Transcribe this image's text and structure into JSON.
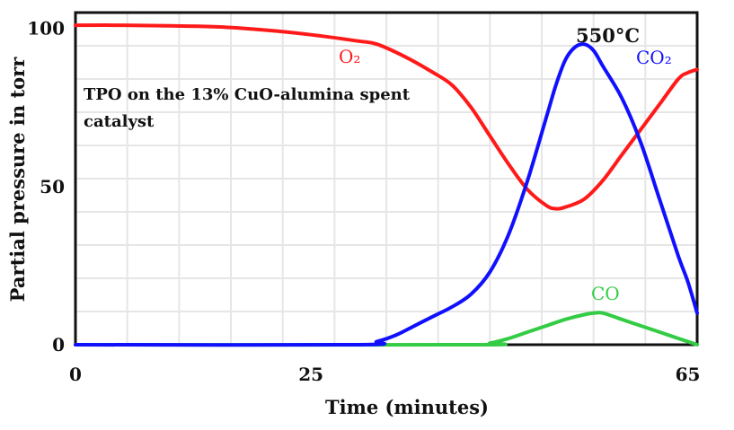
{
  "chart_data": {
    "type": "line",
    "title": "",
    "inset_text": [
      "TPO on the 13% CuO-alumina spent",
      "catalyst"
    ],
    "xlabel": "Time (minutes)",
    "ylabel": "Partial pressure in torr",
    "xlim": [
      0,
      66
    ],
    "ylim": [
      0,
      105
    ],
    "x_ticks": [
      0,
      25,
      65
    ],
    "y_ticks": [
      0,
      50,
      100
    ],
    "grid": true,
    "annotations": [
      {
        "text": "550°C",
        "x": 56,
        "y": 98
      }
    ],
    "series": [
      {
        "name": "O2",
        "color": "#ff1a1a",
        "points": [
          [
            0,
            101
          ],
          [
            5,
            101
          ],
          [
            10,
            100.8
          ],
          [
            15,
            100.5
          ],
          [
            20,
            99.5
          ],
          [
            25,
            98
          ],
          [
            30,
            96
          ],
          [
            32,
            95
          ],
          [
            35,
            91
          ],
          [
            38,
            86
          ],
          [
            40,
            82
          ],
          [
            42,
            75
          ],
          [
            44,
            66
          ],
          [
            46,
            57
          ],
          [
            48,
            49
          ],
          [
            50,
            44
          ],
          [
            51,
            43
          ],
          [
            52,
            43.5
          ],
          [
            54,
            46
          ],
          [
            56,
            52
          ],
          [
            58,
            60
          ],
          [
            60,
            68
          ],
          [
            62,
            76
          ],
          [
            64,
            84
          ],
          [
            65,
            86
          ],
          [
            66,
            87
          ]
        ]
      },
      {
        "name": "CO2",
        "color": "#1010ff",
        "points": [
          [
            0,
            0
          ],
          [
            30,
            0
          ],
          [
            32,
            1
          ],
          [
            34,
            3
          ],
          [
            36,
            6
          ],
          [
            38,
            9
          ],
          [
            40,
            12
          ],
          [
            42,
            16
          ],
          [
            44,
            23
          ],
          [
            46,
            35
          ],
          [
            48,
            52
          ],
          [
            50,
            72
          ],
          [
            51,
            82
          ],
          [
            52,
            90
          ],
          [
            53,
            94
          ],
          [
            54,
            95
          ],
          [
            55,
            93
          ],
          [
            56,
            88
          ],
          [
            58,
            78
          ],
          [
            60,
            64
          ],
          [
            62,
            46
          ],
          [
            64,
            28
          ],
          [
            65,
            20
          ],
          [
            66,
            10
          ]
        ]
      },
      {
        "name": "CO",
        "color": "#33cc44",
        "points": [
          [
            0,
            0
          ],
          [
            42,
            0
          ],
          [
            44,
            0.5
          ],
          [
            46,
            2
          ],
          [
            48,
            4
          ],
          [
            50,
            6
          ],
          [
            52,
            8
          ],
          [
            54,
            9.5
          ],
          [
            55,
            10
          ],
          [
            56,
            10
          ],
          [
            58,
            8
          ],
          [
            60,
            6
          ],
          [
            62,
            4
          ],
          [
            64,
            2
          ],
          [
            66,
            0
          ]
        ]
      }
    ],
    "series_labels": [
      {
        "series": "O2",
        "text": "O₂",
        "color": "#ff1a1a"
      },
      {
        "series": "CO2",
        "text": "CO₂",
        "color": "#1010ff"
      },
      {
        "series": "CO",
        "text": "CO",
        "color": "#33cc44"
      }
    ]
  }
}
